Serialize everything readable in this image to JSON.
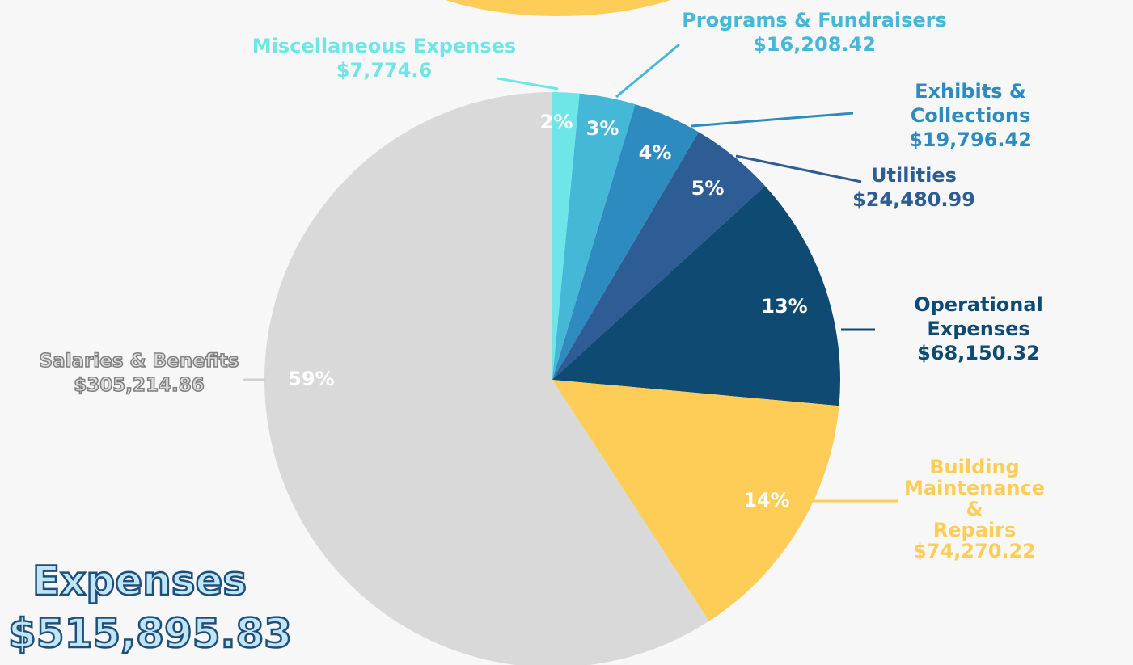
{
  "chart_data": {
    "type": "pie",
    "title": "Expenses",
    "subtitle": "$515,895.83",
    "categories": [
      "Miscellaneous Expenses",
      "Programs & Fundraisers",
      "Exhibits & Collections",
      "Utilities",
      "Operational Expenses",
      "Building Maintenance\n&\nRepairs",
      "Salaries & Benefits"
    ],
    "values": [
      7774.6,
      16208.42,
      19796.42,
      24480.99,
      68150.32,
      74270.22,
      305214.86
    ],
    "value_labels": [
      "$7,774.6",
      "$16,208.42",
      "$19,796.42",
      "$24,480.99",
      "$68,150.32",
      "$74,270.22",
      "$305,214.86"
    ],
    "percent_labels": [
      "2%",
      "3%",
      "4%",
      "5%",
      "13%",
      "14%",
      "59%"
    ],
    "colors": [
      "#6ee6e8",
      "#45b8d8",
      "#2e8bbf",
      "#2e5d96",
      "#0f4a73",
      "#fecd57",
      "#d9d9d9"
    ]
  }
}
